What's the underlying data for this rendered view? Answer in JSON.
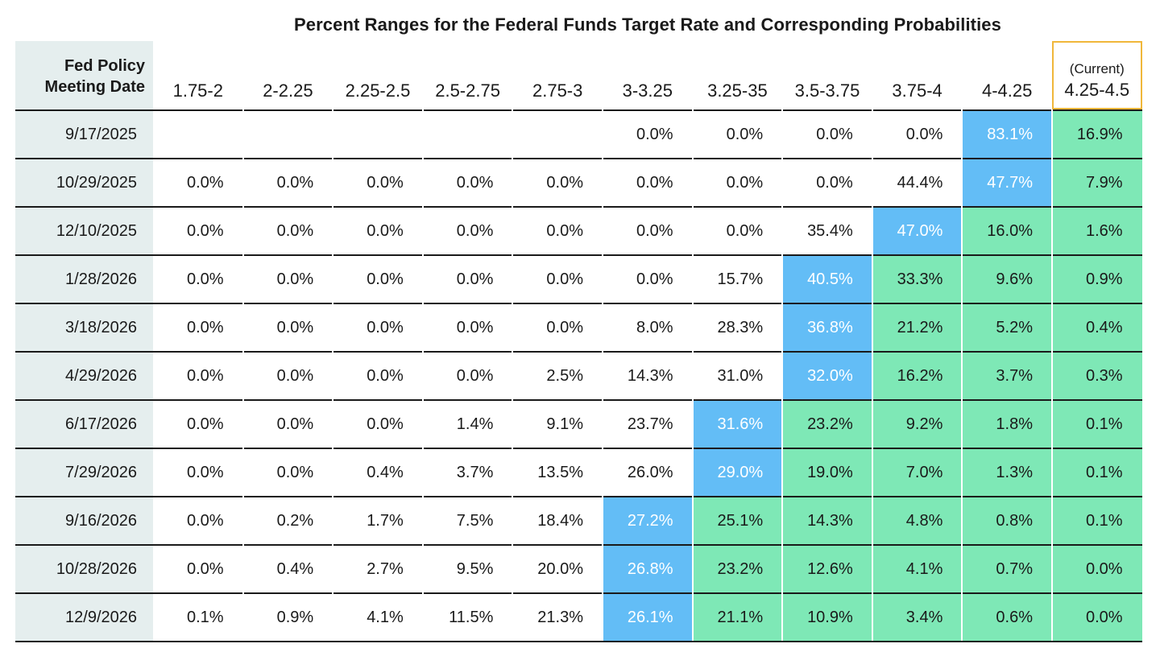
{
  "chart_data": {
    "type": "table",
    "title": "Percent Ranges for the Federal Funds Target Rate and Corresponding Probabilities",
    "row_header": [
      "Fed Policy",
      "Meeting Date"
    ],
    "columns": [
      "1.75-2",
      "2-2.25",
      "2.25-2.5",
      "2.5-2.75",
      "2.75-3",
      "3-3.25",
      "3.25-35",
      "3.5-3.75",
      "3.75-4",
      "4-4.25",
      "4.25-4.5"
    ],
    "current_label": "(Current)",
    "current_column_index": 10,
    "colors": {
      "highlight_mode": "#63bdf6",
      "above_mode": "#7ee8b6",
      "date_column": "#e5eeee",
      "current_border": "#f0b73a"
    },
    "rows": [
      {
        "date": "9/17/2025",
        "values": [
          "",
          "",
          "",
          "",
          "",
          "0.0%",
          "0.0%",
          "0.0%",
          "0.0%",
          "83.1%",
          "16.9%"
        ]
      },
      {
        "date": "10/29/2025",
        "values": [
          "0.0%",
          "0.0%",
          "0.0%",
          "0.0%",
          "0.0%",
          "0.0%",
          "0.0%",
          "0.0%",
          "44.4%",
          "47.7%",
          "7.9%"
        ]
      },
      {
        "date": "12/10/2025",
        "values": [
          "0.0%",
          "0.0%",
          "0.0%",
          "0.0%",
          "0.0%",
          "0.0%",
          "0.0%",
          "35.4%",
          "47.0%",
          "16.0%",
          "1.6%"
        ]
      },
      {
        "date": "1/28/2026",
        "values": [
          "0.0%",
          "0.0%",
          "0.0%",
          "0.0%",
          "0.0%",
          "0.0%",
          "15.7%",
          "40.5%",
          "33.3%",
          "9.6%",
          "0.9%"
        ]
      },
      {
        "date": "3/18/2026",
        "values": [
          "0.0%",
          "0.0%",
          "0.0%",
          "0.0%",
          "0.0%",
          "8.0%",
          "28.3%",
          "36.8%",
          "21.2%",
          "5.2%",
          "0.4%"
        ]
      },
      {
        "date": "4/29/2026",
        "values": [
          "0.0%",
          "0.0%",
          "0.0%",
          "0.0%",
          "2.5%",
          "14.3%",
          "31.0%",
          "32.0%",
          "16.2%",
          "3.7%",
          "0.3%"
        ]
      },
      {
        "date": "6/17/2026",
        "values": [
          "0.0%",
          "0.0%",
          "0.0%",
          "1.4%",
          "9.1%",
          "23.7%",
          "31.6%",
          "23.2%",
          "9.2%",
          "1.8%",
          "0.1%"
        ]
      },
      {
        "date": "7/29/2026",
        "values": [
          "0.0%",
          "0.0%",
          "0.4%",
          "3.7%",
          "13.5%",
          "26.0%",
          "29.0%",
          "19.0%",
          "7.0%",
          "1.3%",
          "0.1%"
        ]
      },
      {
        "date": "9/16/2026",
        "values": [
          "0.0%",
          "0.2%",
          "1.7%",
          "7.5%",
          "18.4%",
          "27.2%",
          "25.1%",
          "14.3%",
          "4.8%",
          "0.8%",
          "0.1%"
        ]
      },
      {
        "date": "10/28/2026",
        "values": [
          "0.0%",
          "0.4%",
          "2.7%",
          "9.5%",
          "20.0%",
          "26.8%",
          "23.2%",
          "12.6%",
          "4.1%",
          "0.7%",
          "0.0%"
        ]
      },
      {
        "date": "12/9/2026",
        "values": [
          "0.1%",
          "0.9%",
          "4.1%",
          "11.5%",
          "21.3%",
          "26.1%",
          "21.1%",
          "10.9%",
          "3.4%",
          "0.6%",
          "0.0%"
        ]
      }
    ],
    "highlight_column_by_row": [
      9,
      9,
      8,
      7,
      7,
      7,
      6,
      6,
      5,
      5,
      5
    ]
  }
}
